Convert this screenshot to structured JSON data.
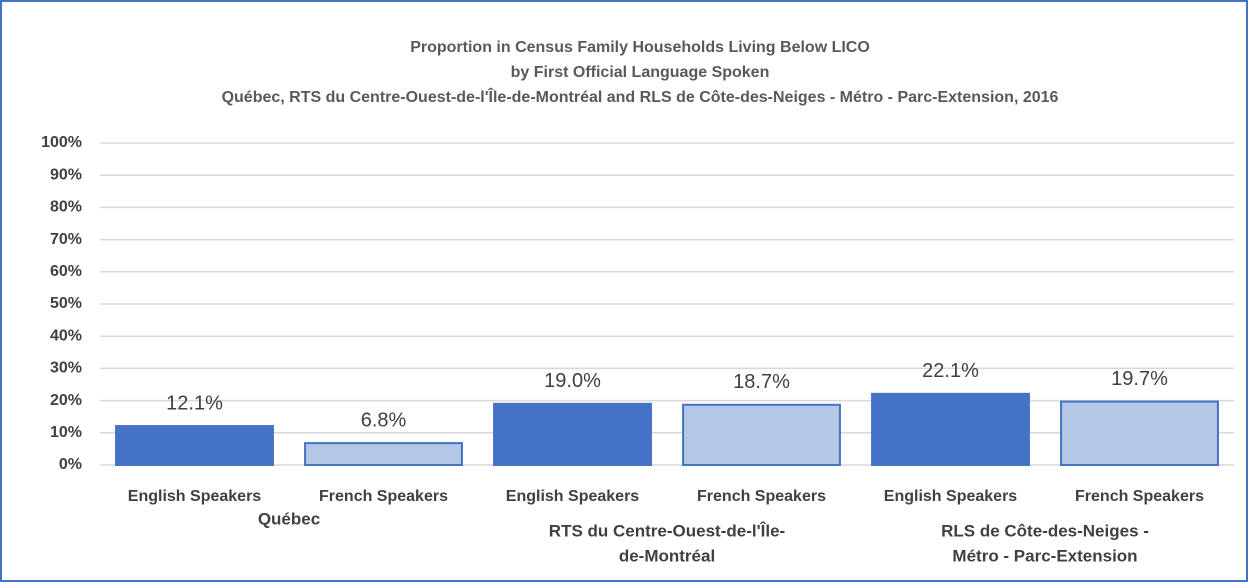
{
  "chart_data": {
    "type": "bar",
    "title": [
      "Proportion in Census Family Households Living Below LICO",
      "by First Official Language Spoken",
      "Québec, RTS du Centre-Ouest-de-l'Île-de-Montréal and RLS de Côte-des-Neiges - Métro - Parc-Extension, 2016"
    ],
    "categories": [
      "English Speakers",
      "French Speakers",
      "English Speakers",
      "French Speakers",
      "English Speakers",
      "French Speakers"
    ],
    "groups": [
      [
        "Québec"
      ],
      [
        "RTS du Centre-Ouest-de-l'Île-",
        "de-Montréal"
      ],
      [
        "RLS de Côte-des-Neiges -",
        "Métro - Parc-Extension"
      ]
    ],
    "values": [
      12.1,
      6.8,
      19.0,
      18.7,
      22.1,
      19.7
    ],
    "value_labels": [
      "12.1%",
      "6.8%",
      "19.0%",
      "18.7%",
      "22.1%",
      "19.7%"
    ],
    "colors": [
      "#4472c4",
      "#b4c7e7",
      "#4472c4",
      "#b4c7e7",
      "#4472c4",
      "#b4c7e7"
    ],
    "ylim": [
      0,
      100
    ],
    "yticks": [
      {
        "value": 0,
        "label": "0%"
      },
      {
        "value": 10,
        "label": "10%"
      },
      {
        "value": 20,
        "label": "20%"
      },
      {
        "value": 30,
        "label": "30%"
      },
      {
        "value": 40,
        "label": "40%"
      },
      {
        "value": 50,
        "label": "50%"
      },
      {
        "value": 60,
        "label": "60%"
      },
      {
        "value": 70,
        "label": "70%"
      },
      {
        "value": 80,
        "label": "80%"
      },
      {
        "value": 90,
        "label": "90%"
      },
      {
        "value": 100,
        "label": "100%"
      }
    ],
    "grid": true
  }
}
